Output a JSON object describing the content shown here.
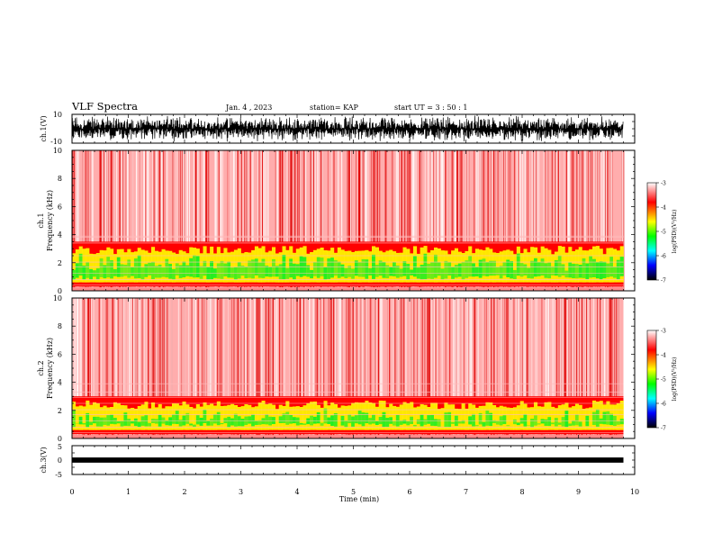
{
  "header": {
    "title": "VLF Spectra",
    "date": "Jan. 4 , 2023",
    "station": "station= KAP",
    "start": "start UT = 3 : 50 : 1"
  },
  "chart_data": [
    {
      "type": "line",
      "panel": "ch1-waveform",
      "ylabel": "ch.1(V)",
      "ylim": [
        -10,
        10
      ],
      "y_ticks": [
        "10",
        "-10"
      ],
      "xlim": [
        0,
        10
      ],
      "series_color": "#000000",
      "data_extent_min": 9.8
    },
    {
      "type": "heatmap",
      "panel": "ch1-spectrogram",
      "ylabel": [
        "ch.1",
        "Frequency (kHz)"
      ],
      "ylim": [
        0,
        10
      ],
      "y_ticks": [
        "0",
        "2",
        "4",
        "6",
        "8",
        "10"
      ],
      "xlim": [
        0,
        10
      ],
      "data_extent_min": 9.8,
      "strong_band_khz": [
        0.3,
        3.5
      ],
      "colorbar": {
        "label": "log(PSD)(V²/Hz)",
        "range": [
          -7,
          -3
        ],
        "ticks": [
          "-3",
          "-4",
          "-5",
          "-6",
          "-7"
        ],
        "colors": [
          "#ffffff",
          "#ff0000",
          "#ffff00",
          "#00ff00",
          "#00ffff",
          "#0000ff",
          "#000000"
        ]
      }
    },
    {
      "type": "heatmap",
      "panel": "ch2-spectrogram",
      "ylabel": [
        "ch.2",
        "Frequency (kHz)"
      ],
      "ylim": [
        0,
        10
      ],
      "y_ticks": [
        "0",
        "2",
        "4",
        "6",
        "8",
        "10"
      ],
      "xlim": [
        0,
        10
      ],
      "data_extent_min": 9.8,
      "strong_band_khz": [
        0.3,
        3.0
      ],
      "colorbar": {
        "label": "log(PSD)(V²/Hz)",
        "range": [
          -7,
          -3
        ],
        "ticks": [
          "-3",
          "-4",
          "-5",
          "-6",
          "-7"
        ],
        "colors": [
          "#ffffff",
          "#ff0000",
          "#ffff00",
          "#00ff00",
          "#00ffff",
          "#0000ff",
          "#000000"
        ]
      }
    },
    {
      "type": "line",
      "panel": "ch3-waveform",
      "ylabel": "ch.3(V)",
      "ylim": [
        -5,
        5
      ],
      "y_ticks": [
        "5",
        "0",
        "-5"
      ],
      "xlim": [
        0,
        10
      ],
      "series_color": "#000000",
      "data_extent_min": 9.8
    }
  ],
  "x_axis": {
    "label": "Time (min)",
    "ticks": [
      "0",
      "1",
      "2",
      "3",
      "4",
      "5",
      "6",
      "7",
      "8",
      "9",
      "10"
    ]
  }
}
